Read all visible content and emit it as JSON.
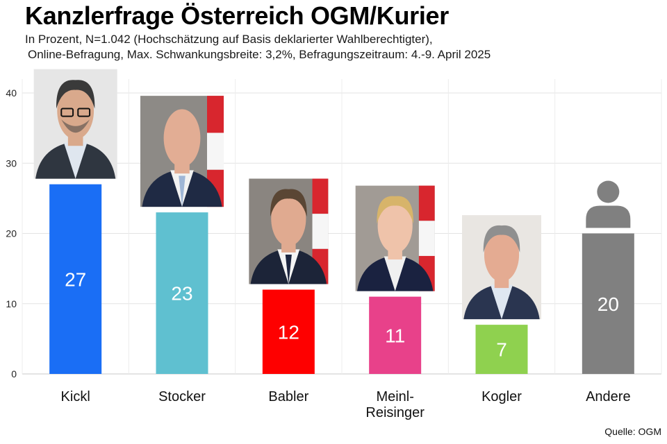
{
  "header": {
    "title": "Kanzlerfrage Österreich OGM/Kurier",
    "subtitle_line1": "In Prozent, N=1.042 (Hochschätzung auf Basis deklarierter Wahlberechtigter),",
    "subtitle_line2": "Online-Befragung, Max. Schwankungsbreite: 3,2%, Befragungszeitraum: 4.-9. April 2025"
  },
  "footer": {
    "source": "Quelle: OGM"
  },
  "chart_data": {
    "type": "bar",
    "title": "Kanzlerfrage Österreich OGM/Kurier",
    "xlabel": "",
    "ylabel": "",
    "ylim": [
      0,
      40
    ],
    "yticks": [
      0,
      10,
      20,
      30,
      40
    ],
    "grid": true,
    "categories": [
      [
        "Kickl"
      ],
      [
        "Stocker"
      ],
      [
        "Babler"
      ],
      [
        "Meinl-",
        "Reisinger"
      ],
      [
        "Kogler"
      ],
      [
        "Andere"
      ]
    ],
    "values": [
      27,
      23,
      12,
      11,
      7,
      20
    ],
    "colors": [
      "#1a6ef5",
      "#5fc0d0",
      "#fe0000",
      "#e8418a",
      "#8fd14f",
      "#808080"
    ],
    "label_color": "#ffffff",
    "portraits": [
      "portrait-kickl",
      "portrait-stocker",
      "portrait-babler",
      "portrait-meinl-reisinger",
      "portrait-kogler",
      "person-icon"
    ]
  }
}
